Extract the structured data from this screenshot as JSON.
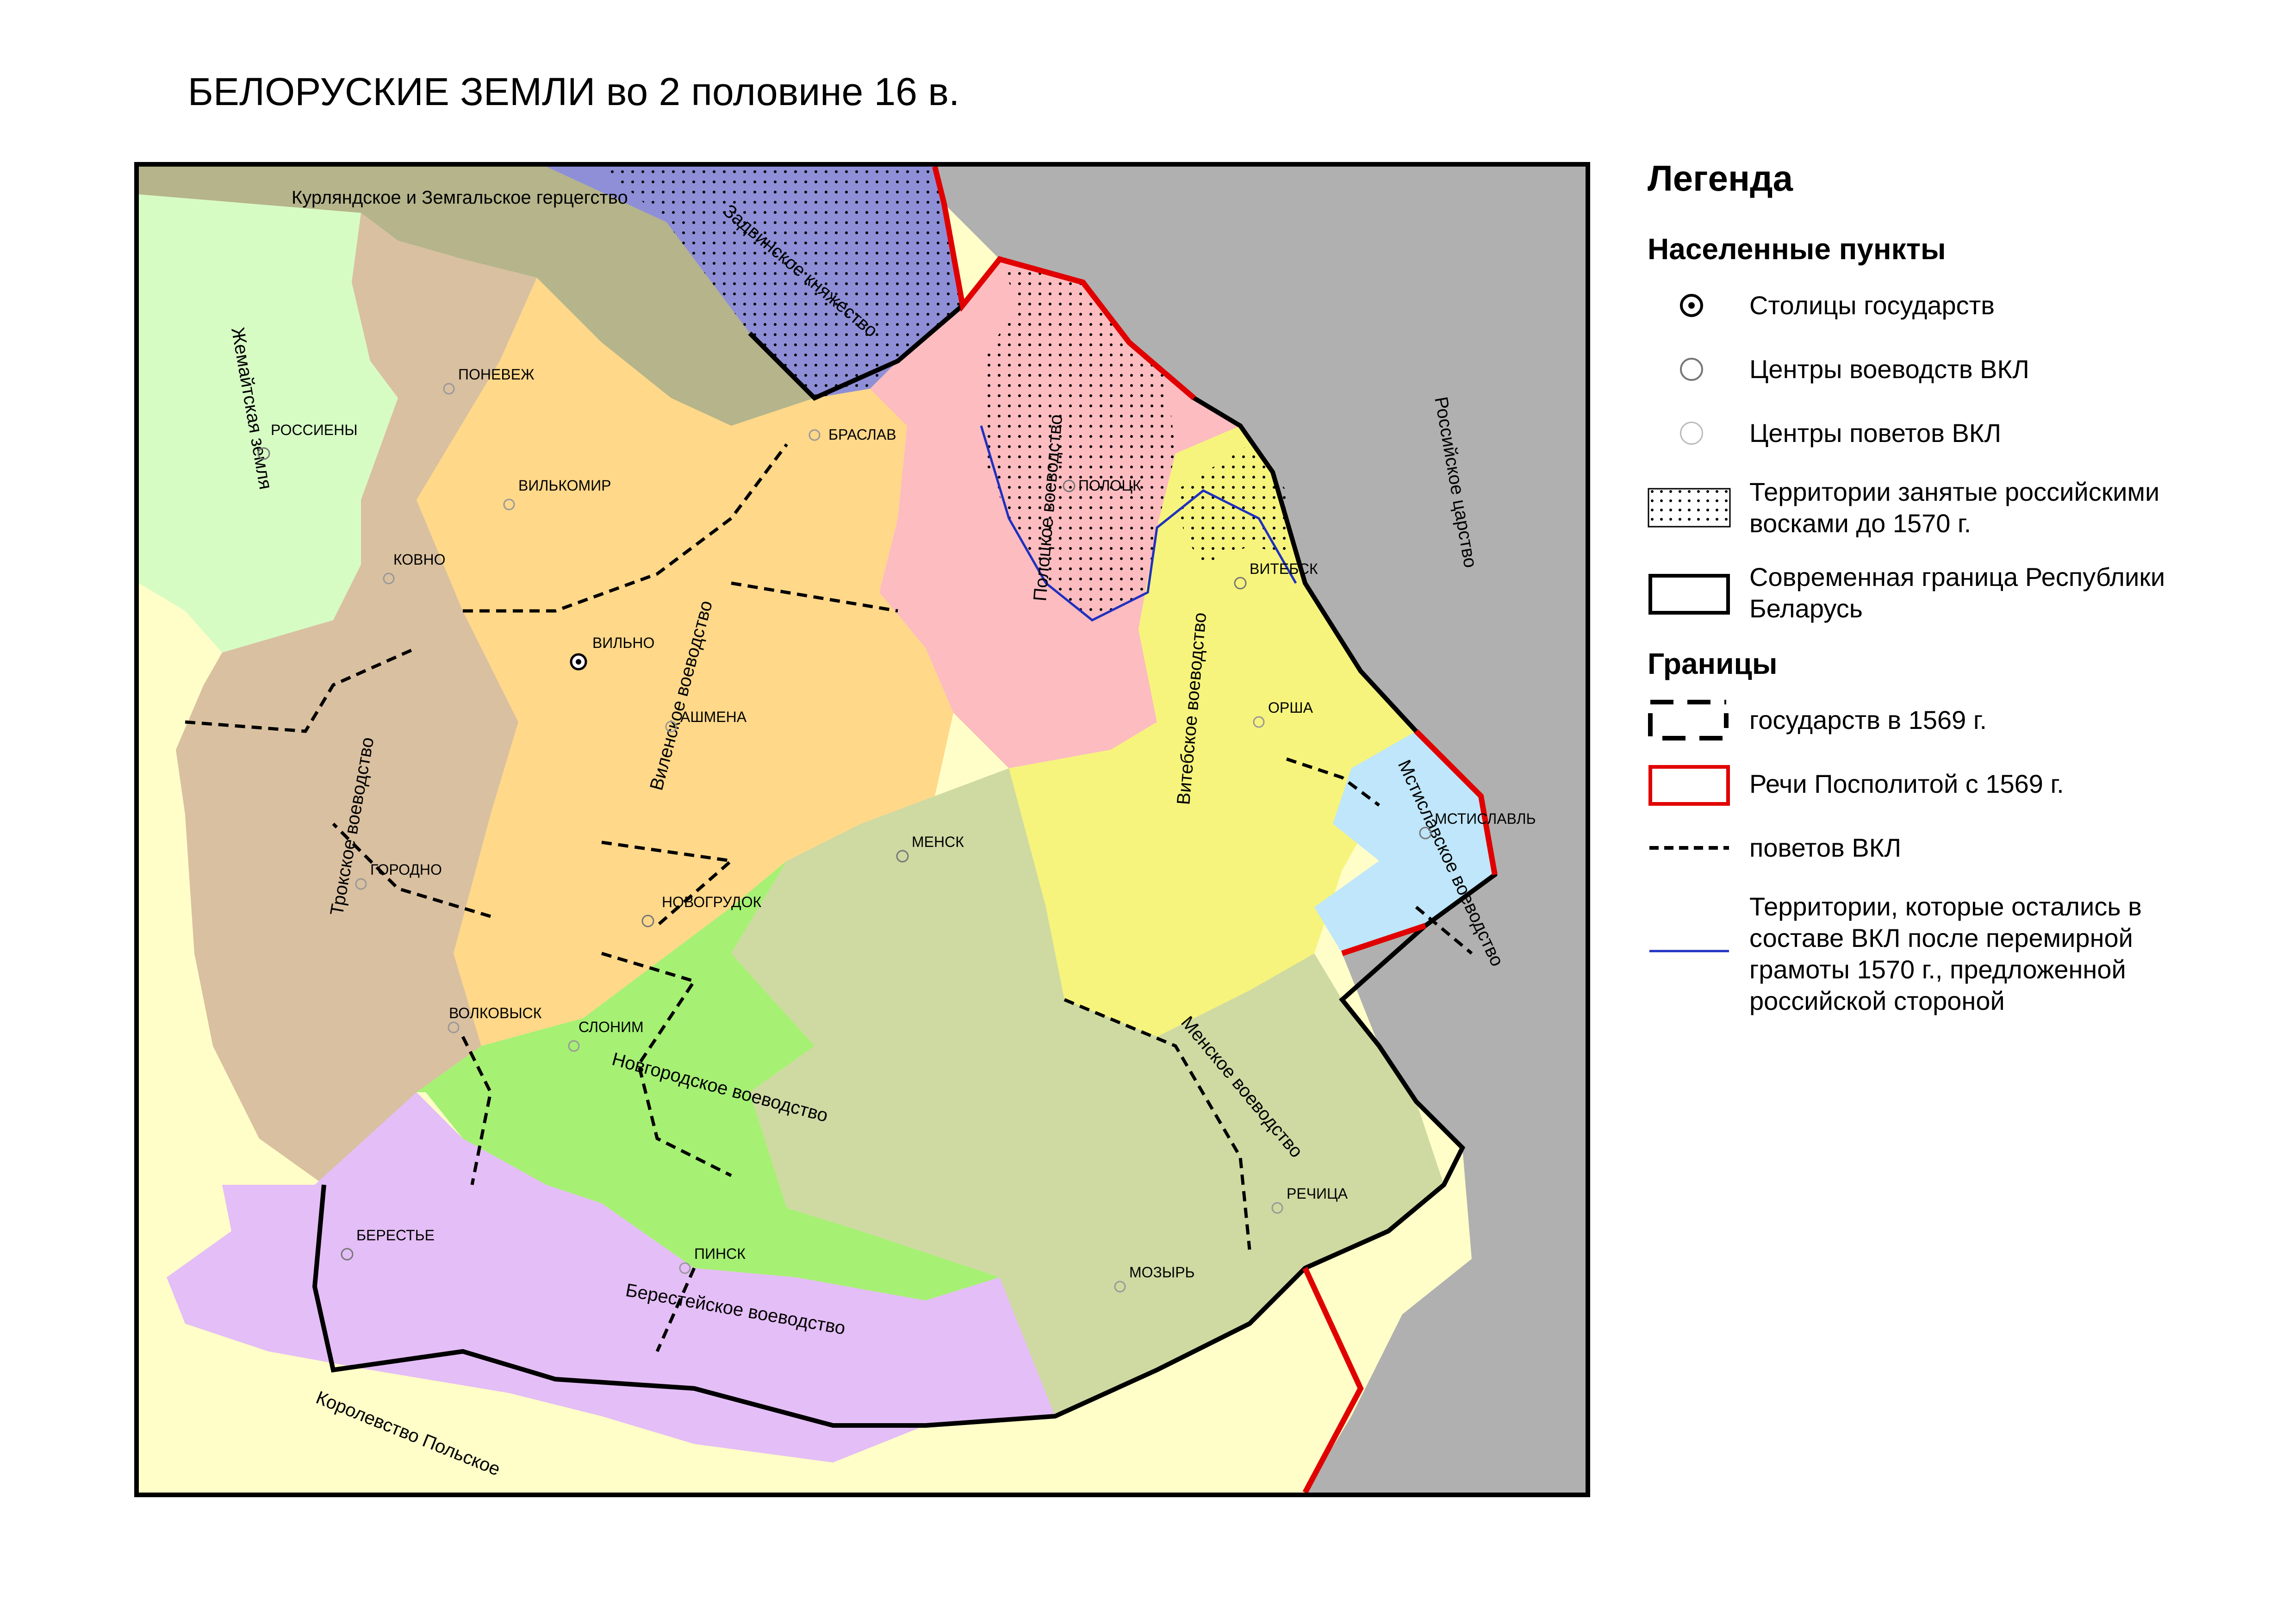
{
  "title": "БЕЛОРУСКИЕ ЗЕМЛИ во 2 половине 16 в.",
  "colors": {
    "samogitia": "#d6fcc4",
    "trakai": "#d9c0a0",
    "vilnius": "#ffd889",
    "polotsk": "#fcbcc0",
    "vitebsk": "#f6f47c",
    "mstislavl": "#bfe6fa",
    "minsk": "#cfd9a2",
    "novogrudok": "#a6f074",
    "brest": "#e4bef6",
    "courland": "#b5b48a",
    "livonia": "#8e8fd6",
    "russia": "#b0b0b0",
    "poland": "#fffec8",
    "rzeczpospolita_border": "#e00000",
    "vkl_1570": "#2030c0"
  },
  "map": {
    "regions": {
      "samogitia": "Жемайтская земля",
      "courland": "Курляндское и Земгальское герцегство",
      "livonia": "Задвинское княжество",
      "russia": "Российское царство",
      "trakai": "Трокское воеводство",
      "vilnius": "Виленское воеводство",
      "polotsk": "Полоцкое воеводство",
      "vitebsk": "Витебское воеводство",
      "mstislavl": "Мстиславское воеводство",
      "minsk": "Менское воеводство",
      "novogrudok": "Новгородское воеводство",
      "brest": "Берестейское воеводство",
      "poland": "Королевство Польское"
    },
    "cities": {
      "vilno": "ВИЛЬНО",
      "ponevezh": "ПОНЕВЕЖ",
      "rossieny": "РОССИЕНЫ",
      "vilkomir": "ВИЛЬКОМИР",
      "kovno": "КОВНО",
      "braslav": "БРАСЛАВ",
      "polotsk": "ПОЛОЦК",
      "vitebsk": "ВИТЕБСК",
      "orsha": "ОРША",
      "ashmena": "АШМЕНА",
      "menesk": "МЕНСК",
      "grodno": "ГОРОДНО",
      "novogrudok": "НОВОГРУДОК",
      "mstislavl": "МСТИСЛАВЛЬ",
      "volkovysk": "ВОЛКОВЫСК",
      "slonim": "СЛОНИМ",
      "rechitsa": "РЕЧИЦА",
      "berestye": "БЕРЕСТЬЕ",
      "pinsk": "ПИНСК",
      "mozyr": "МОЗЫРЬ"
    }
  },
  "legend": {
    "title": "Легенда",
    "settlements_heading": "Населенные пункты",
    "capitals": "Столицы государств",
    "voivodeship_centers": "Центры воеводств ВКЛ",
    "povet_centers": "Центры поветов ВКЛ",
    "occupied_line1": "Территории занятые российскими",
    "occupied_line2": "восками до 1570 г.",
    "modern_border_line1": "Современная граница Республики",
    "modern_border_line2": "Беларусь",
    "borders_heading": "Границы",
    "states_1569": "государств в 1569 г.",
    "rzeczpospolita_1569": "Речи Посполитой с 1569 г.",
    "povets_vkl": "поветов ВКЛ",
    "remained_line1": "Территории, которые остались в",
    "remained_line2": "составе ВКЛ после перемирной",
    "remained_line3": "грамоты 1570 г., предложенной",
    "remained_line4": "российской стороной"
  }
}
